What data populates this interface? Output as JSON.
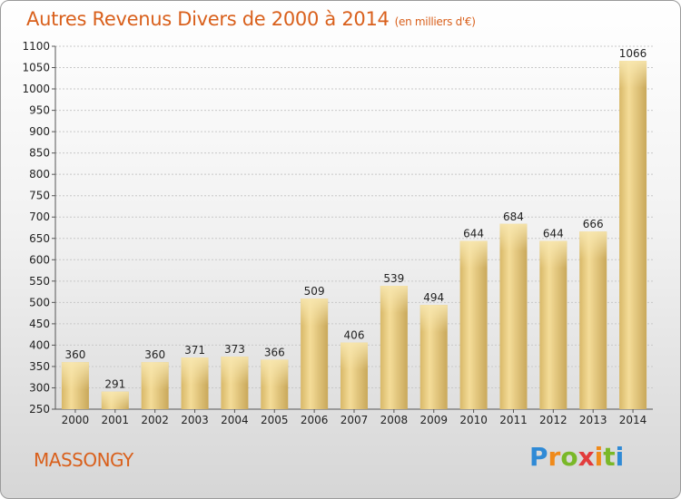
{
  "header": {
    "title": "Autres Revenus Divers de 2000 à 2014",
    "unit": "(en milliers d'€)"
  },
  "footer": {
    "town": "MASSONGY",
    "logo": "Proxiti"
  },
  "colors": {
    "bar_fill": "#e9cf86",
    "bar_highlight": "#f6e3a6",
    "title": "#d9601c"
  },
  "chart_data": {
    "type": "bar",
    "title": "Autres Revenus Divers de 2000 à 2014",
    "subtitle": "(en milliers d'€)",
    "categories": [
      "2000",
      "2001",
      "2002",
      "2003",
      "2004",
      "2005",
      "2006",
      "2007",
      "2008",
      "2009",
      "2010",
      "2011",
      "2012",
      "2013",
      "2014"
    ],
    "values": [
      360,
      291,
      360,
      371,
      373,
      366,
      509,
      406,
      539,
      494,
      644,
      684,
      644,
      666,
      1066
    ],
    "ylim": [
      250,
      1100
    ],
    "yticks": [
      250,
      300,
      350,
      400,
      450,
      500,
      550,
      600,
      650,
      700,
      750,
      800,
      850,
      900,
      950,
      1000,
      1050,
      1100
    ],
    "grid": true,
    "xlabel": "",
    "ylabel": ""
  }
}
